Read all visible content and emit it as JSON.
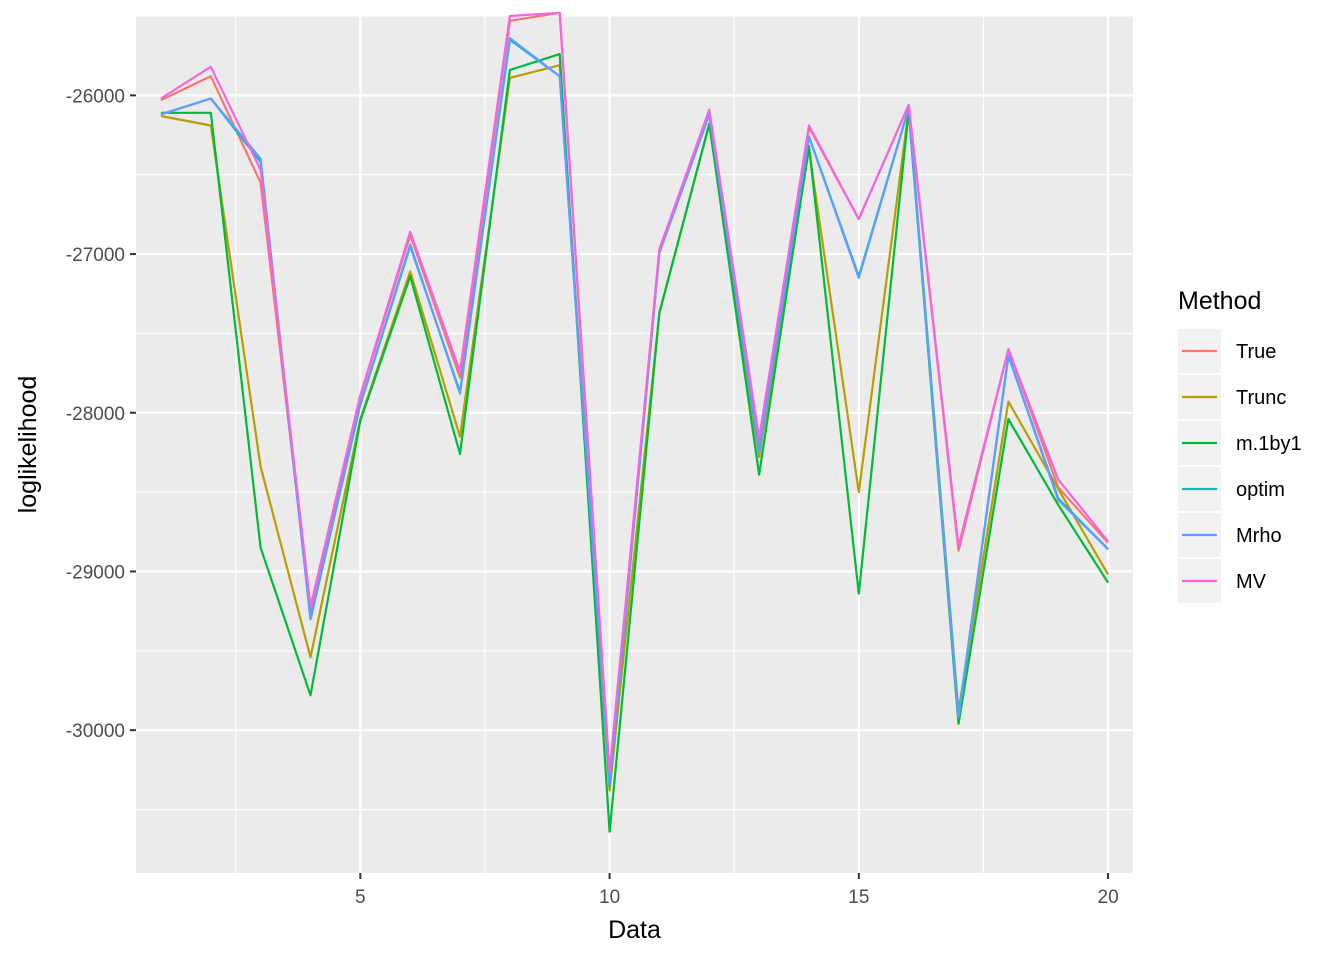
{
  "chart_data": {
    "type": "line",
    "xlabel": "Data",
    "ylabel": "loglikelihood",
    "xlim": [
      0.5,
      20.5
    ],
    "ylim": [
      -30900,
      -25500
    ],
    "x_ticks": [
      5,
      10,
      15,
      20
    ],
    "x_tick_labels": [
      "5",
      "10",
      "15",
      "20"
    ],
    "x_minor_ticks": [
      2.5,
      7.5,
      12.5,
      17.5
    ],
    "y_ticks": [
      -26000,
      -27000,
      -28000,
      -29000,
      -30000
    ],
    "y_tick_labels": [
      "-26000",
      "-27000",
      "-28000",
      "-29000",
      "-30000"
    ],
    "y_minor_ticks": [
      -25500,
      -26500,
      -27500,
      -28500,
      -29500,
      -30500
    ],
    "grid": true,
    "legend": {
      "title": "Method",
      "position": "right"
    },
    "x": [
      1,
      2,
      3,
      4,
      5,
      6,
      7,
      8,
      9,
      10,
      11,
      12,
      13,
      14,
      15,
      16,
      17,
      18,
      19,
      20
    ],
    "series": [
      {
        "name": "True",
        "color": "#F8766D",
        "values": [
          -26030,
          -25880,
          -26550,
          -29250,
          -27900,
          -26880,
          -27780,
          -25530,
          -25480,
          -30300,
          -26970,
          -26100,
          -28180,
          -26200,
          -26780,
          -26060,
          -28870,
          -27600,
          -28470,
          -28820
        ]
      },
      {
        "name": "Trunc",
        "color": "#B79F00",
        "values": [
          -26130,
          -26190,
          -28340,
          -29540,
          -28040,
          -27110,
          -28150,
          -25890,
          -25810,
          -30380,
          -27370,
          -26180,
          -28280,
          -26340,
          -28500,
          -26090,
          -29880,
          -27930,
          -28480,
          -29020
        ]
      },
      {
        "name": "m.1by1",
        "color": "#00BA38",
        "values": [
          -26110,
          -26110,
          -28850,
          -29780,
          -28050,
          -27140,
          -28260,
          -25840,
          -25740,
          -30640,
          -27370,
          -26180,
          -28390,
          -26320,
          -29140,
          -26100,
          -29960,
          -28040,
          -28580,
          -29070
        ]
      },
      {
        "name": "optim",
        "color": "#00BFC4",
        "values": [
          -26120,
          -26020,
          -26420,
          -29300,
          -27950,
          -26950,
          -27870,
          -25650,
          -25880,
          -30350,
          -26990,
          -26120,
          -28240,
          -26260,
          -27140,
          -26080,
          -29910,
          -27640,
          -28540,
          -28860
        ]
      },
      {
        "name": "Mrho",
        "color": "#619CFF",
        "values": [
          -26120,
          -26020,
          -26400,
          -29300,
          -27950,
          -26940,
          -27880,
          -25640,
          -25880,
          -30340,
          -26990,
          -26120,
          -28250,
          -26260,
          -27150,
          -26080,
          -29920,
          -27640,
          -28550,
          -28860
        ]
      },
      {
        "name": "MV",
        "color": "#F564E3",
        "values": [
          -26020,
          -25820,
          -26470,
          -29220,
          -27890,
          -26860,
          -27740,
          -25500,
          -25480,
          -30260,
          -26970,
          -26090,
          -28160,
          -26190,
          -26780,
          -26060,
          -28840,
          -27600,
          -28420,
          -28810
        ]
      }
    ]
  }
}
